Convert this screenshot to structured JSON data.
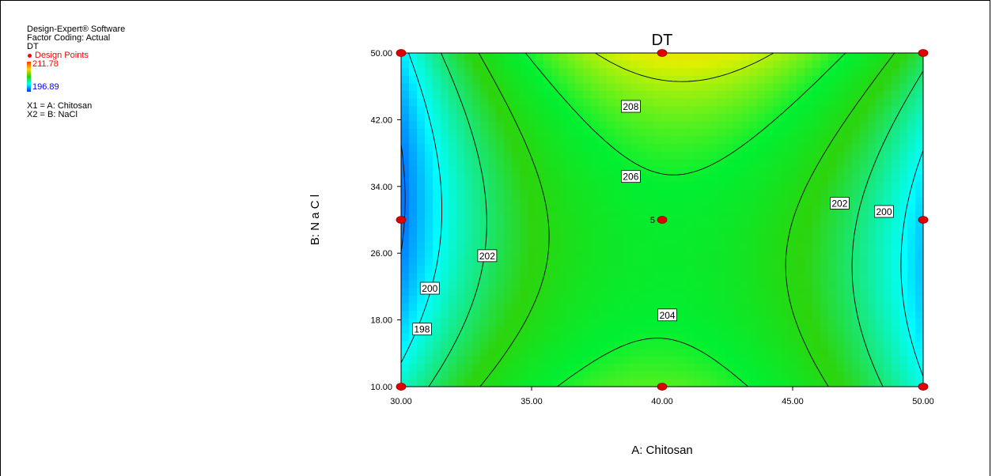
{
  "info_panel": {
    "software": "Design-Expert® Software",
    "coding": "Factor Coding: Actual",
    "response": "DT",
    "design_points_label": "Design Points",
    "scale_high": "211.78",
    "scale_low": "196.89",
    "x1": "X1 = A: Chitosan",
    "x2": "X2 = B: NaCl"
  },
  "colors": {
    "design_point": "#e00000",
    "low": "#0030ff",
    "high": "#ff3a00"
  },
  "chart_data": {
    "type": "heatmap",
    "subtype": "contour",
    "title": "DT",
    "xlabel": "A: Chitosan",
    "ylabel": "B: N a C l",
    "xlim": [
      30,
      50
    ],
    "ylim": [
      10,
      50
    ],
    "x_ticks": [
      "30.00",
      "35.00",
      "40.00",
      "45.00",
      "50.00"
    ],
    "y_ticks": [
      "10.00",
      "18.00",
      "26.00",
      "34.00",
      "42.00",
      "50.00"
    ],
    "color_range": [
      196.89,
      211.78
    ],
    "contour_levels": [
      198,
      200,
      202,
      204,
      206,
      208
    ],
    "contour_labels": [
      {
        "text": "208",
        "x": 38.8,
        "y": 43.6
      },
      {
        "text": "206",
        "x": 38.8,
        "y": 35.2
      },
      {
        "text": "204",
        "x": 40.2,
        "y": 18.6
      },
      {
        "text": "202",
        "x": 33.3,
        "y": 25.7
      },
      {
        "text": "200",
        "x": 31.1,
        "y": 21.8
      },
      {
        "text": "198",
        "x": 30.8,
        "y": 16.9
      },
      {
        "text": "202",
        "x": 46.8,
        "y": 32.0
      },
      {
        "text": "200",
        "x": 48.5,
        "y": 31.0
      }
    ],
    "design_points": [
      {
        "x": 30,
        "y": 50
      },
      {
        "x": 40,
        "y": 50
      },
      {
        "x": 50,
        "y": 50
      },
      {
        "x": 30,
        "y": 30
      },
      {
        "x": 40,
        "y": 30,
        "label": "5"
      },
      {
        "x": 50,
        "y": 30
      },
      {
        "x": 30,
        "y": 10
      },
      {
        "x": 40,
        "y": 10
      },
      {
        "x": 50,
        "y": 10
      }
    ]
  }
}
